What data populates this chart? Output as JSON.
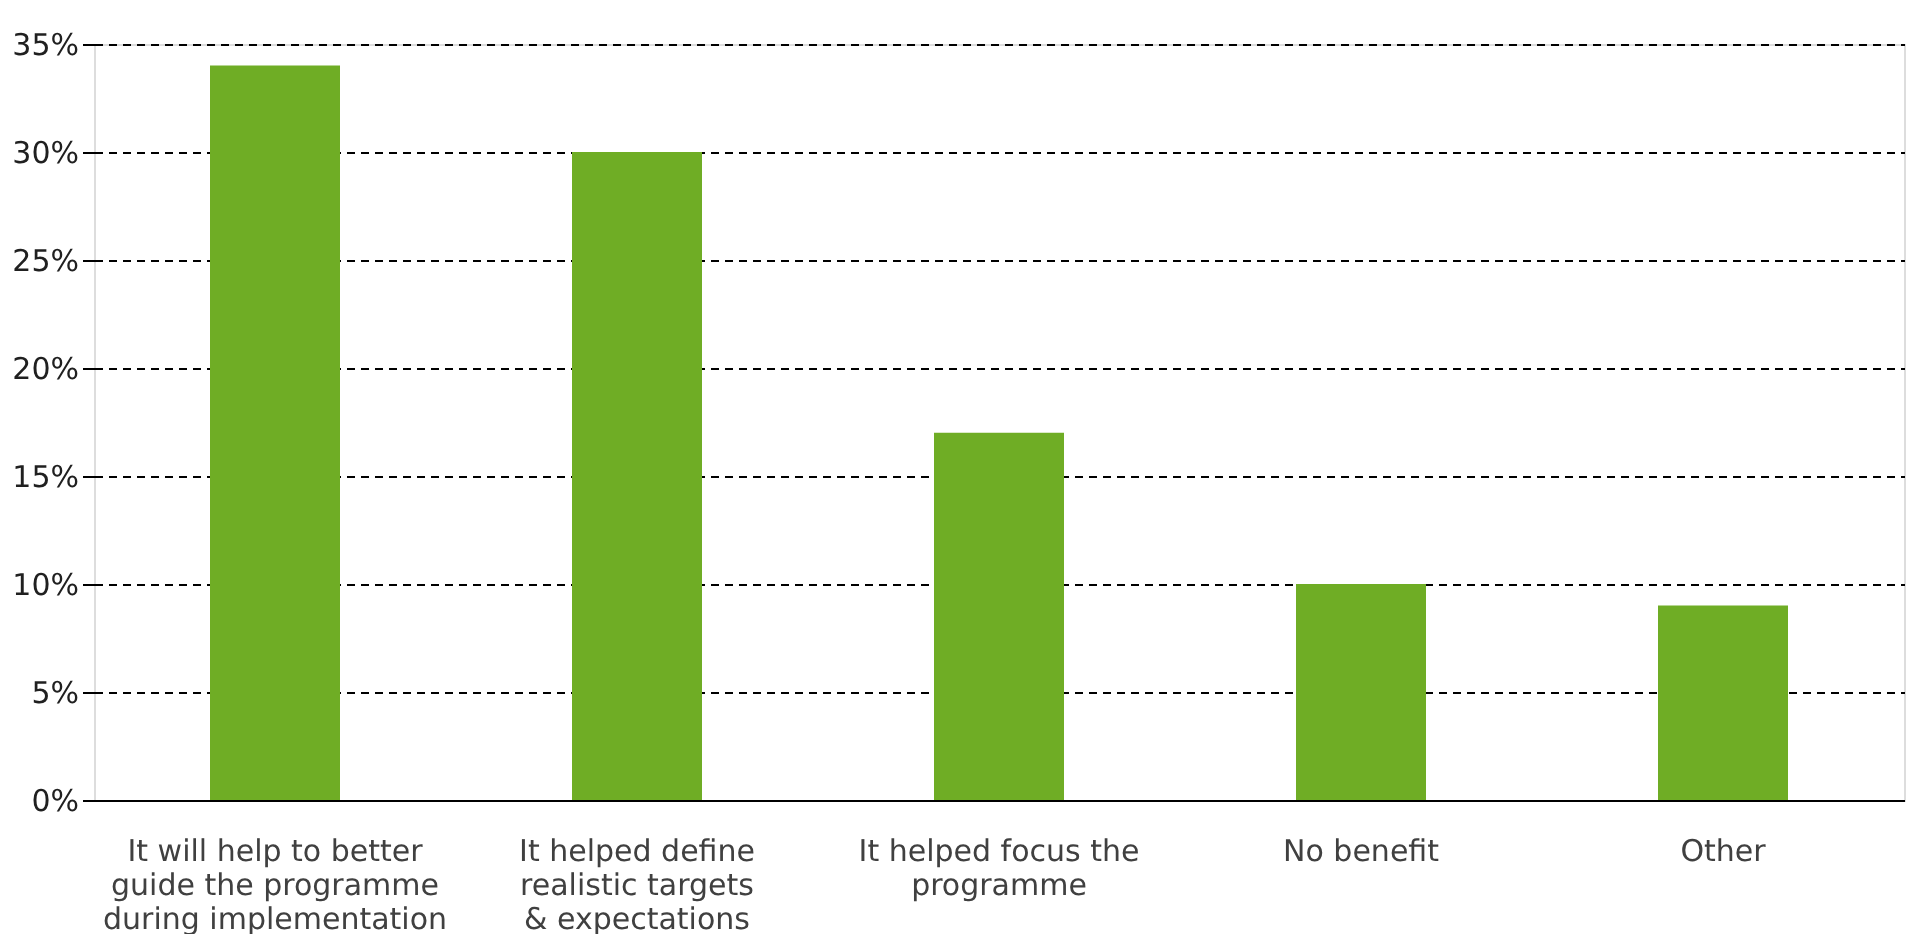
{
  "chart_data": {
    "type": "bar",
    "categories": [
      "It will help to better\nguide the programme\nduring implementation",
      "It helped define\nrealistic targets\n& expectations",
      "It helped focus the\nprogramme",
      "No benefit",
      "Other"
    ],
    "values": [
      34,
      30,
      17,
      10,
      9
    ],
    "color": "#6fad25",
    "ylim": [
      0,
      35
    ],
    "yticks": [
      {
        "value": 0,
        "label": "0%"
      },
      {
        "value": 5,
        "label": "5%"
      },
      {
        "value": 10,
        "label": "10%"
      },
      {
        "value": 15,
        "label": "15%"
      },
      {
        "value": 20,
        "label": "20%"
      },
      {
        "value": 25,
        "label": "25%"
      },
      {
        "value": 30,
        "label": "30%"
      },
      {
        "value": 35,
        "label": "35%"
      }
    ],
    "grid": "y"
  }
}
